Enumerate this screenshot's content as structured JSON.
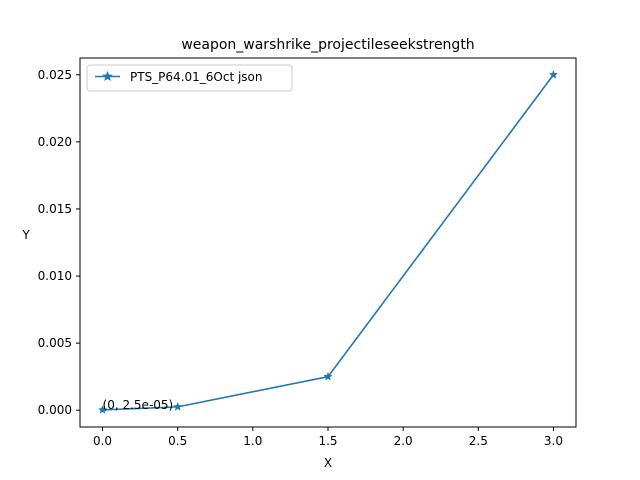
{
  "chart_data": {
    "type": "line",
    "title": "weapon_warshrike_projectileseekstrength",
    "xlabel": "X",
    "ylabel": "Y",
    "xlim": [
      -0.15,
      3.15
    ],
    "ylim": [
      -0.00125,
      0.02625
    ],
    "x_ticks": [
      0.0,
      0.5,
      1.0,
      1.5,
      2.0,
      2.5,
      3.0
    ],
    "x_tick_labels": [
      "0.0",
      "0.5",
      "1.0",
      "1.5",
      "2.0",
      "2.5",
      "3.0"
    ],
    "y_ticks": [
      0.0,
      0.005,
      0.01,
      0.015,
      0.02,
      0.025
    ],
    "y_tick_labels": [
      "0.000",
      "0.005",
      "0.010",
      "0.015",
      "0.020",
      "0.025"
    ],
    "grid": false,
    "legend_position": "upper left",
    "series": [
      {
        "name": "PTS_P64.01_6Oct json",
        "color": "#1f77b4",
        "marker": "star",
        "x": [
          0,
          0.5,
          1.5,
          3.0
        ],
        "y": [
          2.5e-05,
          0.00025,
          0.0025,
          0.025
        ]
      }
    ],
    "annotations": [
      {
        "text": "(0, 2.5e-05)",
        "x": 0,
        "y": 2.5e-05
      }
    ]
  }
}
